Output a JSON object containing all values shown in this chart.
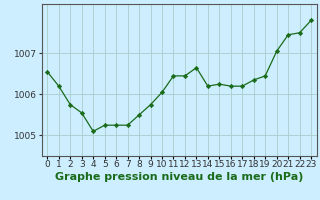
{
  "x": [
    0,
    1,
    2,
    3,
    4,
    5,
    6,
    7,
    8,
    9,
    10,
    11,
    12,
    13,
    14,
    15,
    16,
    17,
    18,
    19,
    20,
    21,
    22,
    23
  ],
  "y": [
    1006.55,
    1006.2,
    1005.75,
    1005.55,
    1005.1,
    1005.25,
    1005.25,
    1005.25,
    1005.5,
    1005.75,
    1006.05,
    1006.45,
    1006.45,
    1006.65,
    1006.2,
    1006.25,
    1006.2,
    1006.2,
    1006.35,
    1006.45,
    1007.05,
    1007.45,
    1007.5,
    1007.8
  ],
  "line_color": "#1a6b1a",
  "marker_color": "#1a6b1a",
  "background_color": "#cceeff",
  "grid_color": "#aacccc",
  "xlabel": "Graphe pression niveau de la mer (hPa)",
  "xlabel_color": "#1a6b1a",
  "ylabel_ticks": [
    1005,
    1006,
    1007
  ],
  "ylim": [
    1004.5,
    1008.2
  ],
  "xlim": [
    -0.5,
    23.5
  ],
  "axis_label_fontsize": 7.5,
  "tick_fontsize": 6.5,
  "xlabel_fontsize": 8
}
